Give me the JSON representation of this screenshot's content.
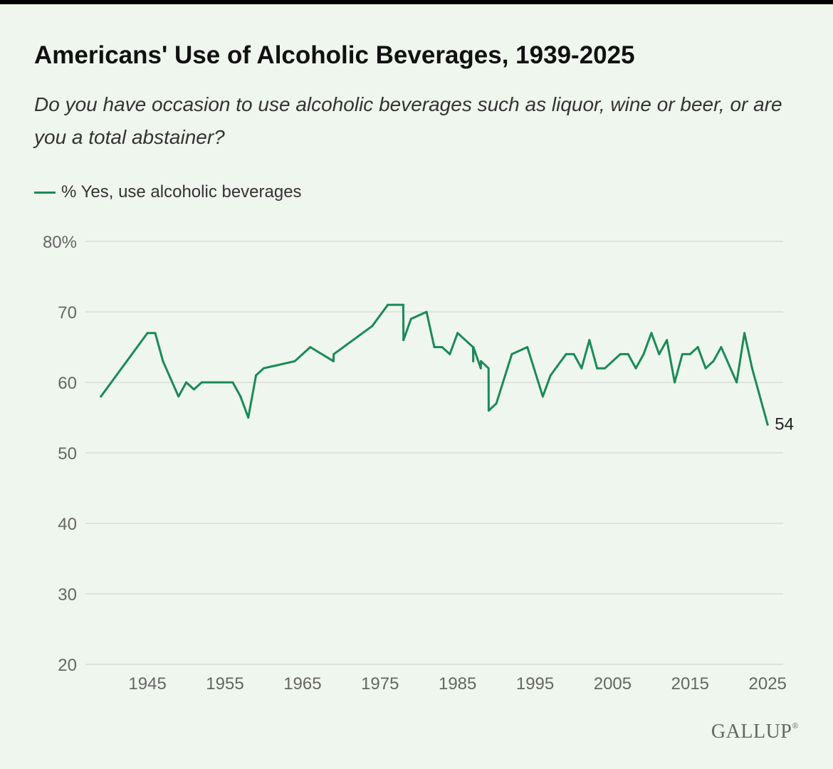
{
  "chart_data": {
    "type": "line",
    "title": "Americans' Use of Alcoholic Beverages, 1939-2025",
    "subtitle": "Do you have occasion to use alcoholic beverages such as liquor, wine or beer, or are you a total abstainer?",
    "xlabel": "",
    "ylabel": "",
    "ylim": [
      20,
      80
    ],
    "xlim": [
      1937,
      2027
    ],
    "y_ticks": [
      "80%",
      "70",
      "60",
      "50",
      "40",
      "30",
      "20"
    ],
    "y_tick_values": [
      80,
      70,
      60,
      50,
      40,
      30,
      20
    ],
    "x_ticks": [
      "1945",
      "1955",
      "1965",
      "1975",
      "1985",
      "1995",
      "2005",
      "2015",
      "2025"
    ],
    "x_tick_values": [
      1945,
      1955,
      1965,
      1975,
      1985,
      1995,
      2005,
      2015,
      2025
    ],
    "grid": "horizontal",
    "legend_position": "top-left",
    "series": [
      {
        "name": "% Yes, use alcoholic beverages",
        "color": "#1a8a57",
        "end_label": "54",
        "points": [
          [
            1939,
            58
          ],
          [
            1945,
            67
          ],
          [
            1946,
            67
          ],
          [
            1947,
            63
          ],
          [
            1949,
            58
          ],
          [
            1950,
            60
          ],
          [
            1951,
            59
          ],
          [
            1952,
            60
          ],
          [
            1956,
            60
          ],
          [
            1957,
            58
          ],
          [
            1958,
            55
          ],
          [
            1959,
            61
          ],
          [
            1960,
            62
          ],
          [
            1964,
            63
          ],
          [
            1966,
            65
          ],
          [
            1969,
            63
          ],
          [
            1969.02,
            64
          ],
          [
            1974,
            68
          ],
          [
            1976,
            71
          ],
          [
            1977,
            71
          ],
          [
            1978,
            71
          ],
          [
            1978.02,
            66
          ],
          [
            1979,
            69
          ],
          [
            1981,
            70
          ],
          [
            1982,
            65
          ],
          [
            1983,
            65
          ],
          [
            1984,
            64
          ],
          [
            1985,
            67
          ],
          [
            1987,
            65
          ],
          [
            1987.02,
            63
          ],
          [
            1987.04,
            65
          ],
          [
            1988,
            62
          ],
          [
            1988.02,
            63
          ],
          [
            1989,
            62
          ],
          [
            1989.02,
            56
          ],
          [
            1990,
            57
          ],
          [
            1992,
            64
          ],
          [
            1994,
            65
          ],
          [
            1996,
            58
          ],
          [
            1997,
            61
          ],
          [
            1999,
            64
          ],
          [
            2000,
            64
          ],
          [
            2001,
            62
          ],
          [
            2002,
            66
          ],
          [
            2003,
            62
          ],
          [
            2004,
            62
          ],
          [
            2006,
            64
          ],
          [
            2007,
            64
          ],
          [
            2008,
            62
          ],
          [
            2009,
            64
          ],
          [
            2010,
            67
          ],
          [
            2011,
            64
          ],
          [
            2012,
            66
          ],
          [
            2013,
            60
          ],
          [
            2014,
            64
          ],
          [
            2015,
            64
          ],
          [
            2016,
            65
          ],
          [
            2017,
            62
          ],
          [
            2018,
            63
          ],
          [
            2019,
            65
          ],
          [
            2021,
            60
          ],
          [
            2022,
            67
          ],
          [
            2023,
            62
          ],
          [
            2025,
            54
          ]
        ]
      }
    ]
  },
  "colors": {
    "background": "#eff6ed",
    "gridline": "#d8ddd6",
    "axis_text": "#666666",
    "line": "#1a8a57"
  },
  "branding": {
    "logo_text": "GALLUP",
    "mark": "®"
  }
}
